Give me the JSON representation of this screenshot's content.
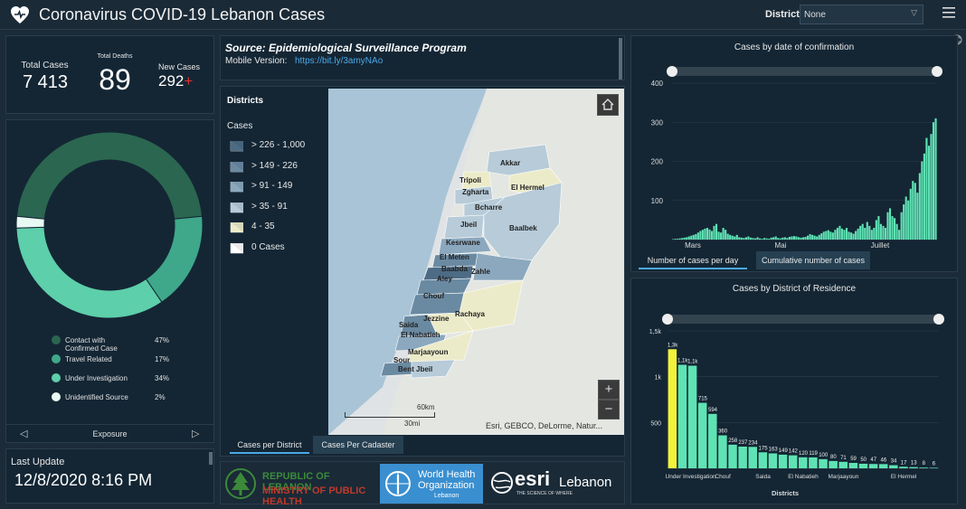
{
  "header": {
    "title": "Coronavirus COVID-19 Lebanon Cases",
    "district_label": "District",
    "district_value": "None"
  },
  "stats": {
    "total_cases_label": "Total Cases",
    "total_cases": "7 413",
    "total_deaths_label": "Total Deaths",
    "total_deaths": "89",
    "new_cases_label": "New Cases",
    "new_cases": "292"
  },
  "donut": {
    "legend": [
      {
        "label": "Contact with Confirmed Case",
        "pct": "47%",
        "color": "#2b6650"
      },
      {
        "label": "Travel Related",
        "pct": "17%",
        "color": "#3fa88a"
      },
      {
        "label": "Under Investigation",
        "pct": "34%",
        "color": "#5dcfaa"
      },
      {
        "label": "Unidentified Source",
        "pct": "2%",
        "color": "#e8f8f2"
      }
    ],
    "values": [
      47,
      17,
      34,
      2
    ],
    "footer": "Exposure"
  },
  "last_update": {
    "label": "Last Update",
    "value": "12/8/2020 8:16 PM"
  },
  "source": {
    "title": "Source: Epidemiological Surveillance Program",
    "mobile_label": "Mobile Version:",
    "mobile_link": "https://bit.ly/3amyNAo"
  },
  "map_legend": {
    "title": "Districts",
    "subtitle": "Cases",
    "items": [
      {
        "label": "> 226 - 1,000",
        "color": "#4d6b85"
      },
      {
        "label": "> 149 - 226",
        "color": "#6a8aa2"
      },
      {
        "label": "> 91 - 149",
        "color": "#8ba8be"
      },
      {
        "label": "> 35 - 91",
        "color": "#b7cbd8"
      },
      {
        "label": "4 - 35",
        "color": "#ecebc9"
      },
      {
        "label": "0 Cases",
        "color": "#ffffff"
      }
    ]
  },
  "map": {
    "labels": [
      "Akkar",
      "Tripoli",
      "El Hermel",
      "Zgharta",
      "Bcharre",
      "Jbeil",
      "Baalbek",
      "Kesrwane",
      "El Meten",
      "Baabda",
      "Zahle",
      "Aley",
      "Chouf",
      "Rachaya",
      "Jezzine",
      "Saida",
      "El Nabatieh",
      "Marjaayoun",
      "Sour",
      "Bent Jbeil"
    ],
    "scale_km": "60km",
    "scale_mi": "30mi",
    "attribution": "Esri, GEBCO, DeLorme, Natur..."
  },
  "map_tabs": [
    "Cases per District",
    "Cases Per Cadaster"
  ],
  "logos": {
    "republic_line1": "REPUBLIC OF LEBANON",
    "republic_line2": "MINISTRY OF PUBLIC HEALTH",
    "who_line1": "World Health",
    "who_line2": "Organization",
    "who_line3": "Lebanon",
    "esri_name": "esri",
    "esri_tagline": "THE SCIENCE OF WHERE",
    "esri_country": "Lebanon"
  },
  "chart_tabs": [
    "Number of cases per day",
    "Cumulative number of cases"
  ],
  "chart_data": [
    {
      "type": "bar",
      "title": "Cases by  date of confirmation",
      "ylim": [
        0,
        400
      ],
      "yticks": [
        "400",
        "300",
        "200",
        "100"
      ],
      "xticks": [
        "Mars",
        "Mai",
        "Juillet"
      ],
      "color": "#5fe3b4",
      "values": [
        1,
        2,
        2,
        3,
        4,
        5,
        6,
        8,
        10,
        12,
        14,
        18,
        22,
        25,
        28,
        30,
        26,
        22,
        35,
        40,
        20,
        18,
        30,
        25,
        15,
        12,
        10,
        8,
        12,
        6,
        5,
        4,
        6,
        8,
        5,
        4,
        3,
        6,
        3,
        2,
        4,
        3,
        2,
        5,
        6,
        8,
        4,
        3,
        5,
        6,
        4,
        7,
        8,
        9,
        8,
        6,
        5,
        6,
        7,
        10,
        14,
        12,
        10,
        8,
        12,
        16,
        20,
        22,
        24,
        20,
        18,
        25,
        30,
        35,
        28,
        25,
        30,
        20,
        18,
        15,
        22,
        28,
        35,
        40,
        30,
        45,
        35,
        25,
        30,
        50,
        60,
        40,
        35,
        30,
        70,
        80,
        60,
        55,
        40,
        25,
        70,
        90,
        110,
        100,
        130,
        150,
        145,
        120,
        170,
        200,
        220,
        260,
        240,
        270,
        300,
        310
      ]
    },
    {
      "type": "bar",
      "title": "Cases by District of Residence",
      "xlabel": "Districts",
      "ylim": [
        0,
        1500
      ],
      "yticks": [
        "1,5k",
        "1k",
        "500"
      ],
      "xticks": [
        "Under Investigation",
        "Chouf",
        "Saida",
        "El Nabatieh",
        "Marjaayoun",
        "El Hermel"
      ],
      "color": "#5fe3b4",
      "highlight_color": "#f2f23a",
      "labels": [
        "1,3k",
        "1,1k",
        "1,1k",
        "715",
        "594",
        "360",
        "258",
        "237",
        "234",
        "175",
        "163",
        "149",
        "142",
        "120",
        "119",
        "100",
        "80",
        "71",
        "59",
        "50",
        "47",
        "46",
        "34",
        "17",
        "13",
        "8",
        "6"
      ],
      "values": [
        1300,
        1130,
        1120,
        715,
        594,
        360,
        258,
        237,
        234,
        175,
        163,
        149,
        142,
        120,
        119,
        100,
        80,
        71,
        59,
        50,
        47,
        46,
        34,
        17,
        13,
        8,
        6
      ]
    }
  ]
}
